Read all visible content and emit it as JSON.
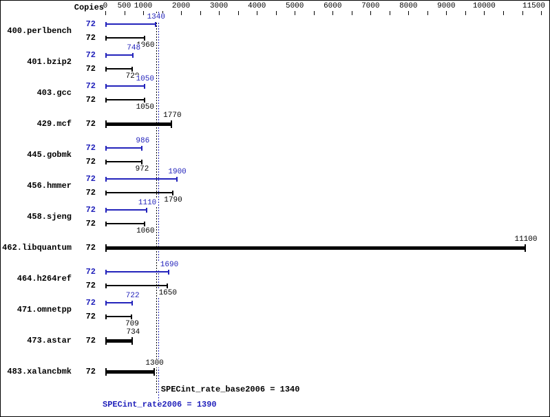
{
  "colors": {
    "peak": "#2222bb",
    "base": "#000000",
    "background": "#ffffff"
  },
  "header": {
    "copies_label": "Copies"
  },
  "chart_data": {
    "type": "bar",
    "orientation": "horizontal",
    "categories": [
      "400.perlbench",
      "401.bzip2",
      "403.gcc",
      "429.mcf",
      "445.gobmk",
      "456.hmmer",
      "458.sjeng",
      "462.libquantum",
      "464.h264ref",
      "471.omnetpp",
      "473.astar",
      "483.xalancbmk"
    ],
    "series": [
      {
        "name": "SPECint_rate2006",
        "color": "#2222bb",
        "values": [
          1340,
          748,
          1050,
          null,
          986,
          1900,
          1110,
          null,
          1690,
          722,
          null,
          null
        ]
      },
      {
        "name": "SPECint_rate_base2006",
        "color": "#000000",
        "values": [
          1060,
          720,
          1050,
          1770,
          972,
          1790,
          1060,
          11100,
          1650,
          709,
          734,
          1300
        ]
      }
    ],
    "benchmarks": [
      {
        "name": "400.perlbench",
        "copies": 72,
        "peak": 1340,
        "base": 1060,
        "single": false
      },
      {
        "name": "401.bzip2",
        "copies": 72,
        "peak": 748,
        "base": 720,
        "single": false
      },
      {
        "name": "403.gcc",
        "copies": 72,
        "peak": 1050,
        "base": 1050,
        "single": false
      },
      {
        "name": "429.mcf",
        "copies": 72,
        "base": 1770,
        "single": true
      },
      {
        "name": "445.gobmk",
        "copies": 72,
        "peak": 986,
        "base": 972,
        "single": false
      },
      {
        "name": "456.hmmer",
        "copies": 72,
        "peak": 1900,
        "base": 1790,
        "single": false
      },
      {
        "name": "458.sjeng",
        "copies": 72,
        "peak": 1110,
        "base": 1060,
        "single": false
      },
      {
        "name": "462.libquantum",
        "copies": 72,
        "base": 11100,
        "single": true
      },
      {
        "name": "464.h264ref",
        "copies": 72,
        "peak": 1690,
        "base": 1650,
        "single": false
      },
      {
        "name": "471.omnetpp",
        "copies": 72,
        "peak": 722,
        "base": 709,
        "single": false
      },
      {
        "name": "473.astar",
        "copies": 72,
        "base": 734,
        "single": true
      },
      {
        "name": "483.xalancbmk",
        "copies": 72,
        "base": 1300,
        "single": true
      }
    ],
    "axis": {
      "position": "top",
      "min": 0,
      "max": 11500,
      "tick_interval": 500,
      "tick_labels": [
        0,
        500,
        1000,
        2000,
        3000,
        4000,
        5000,
        6000,
        7000,
        8000,
        9000,
        10000,
        11500
      ]
    },
    "annotations": {
      "base": {
        "text": "SPECint_rate_base2006 = 1340",
        "value": 1340,
        "style": "dotted-vertical-line"
      },
      "peak": {
        "text": "SPECint_rate2006 = 1390",
        "value": 1390,
        "style": "dotted-vertical-line"
      }
    }
  }
}
